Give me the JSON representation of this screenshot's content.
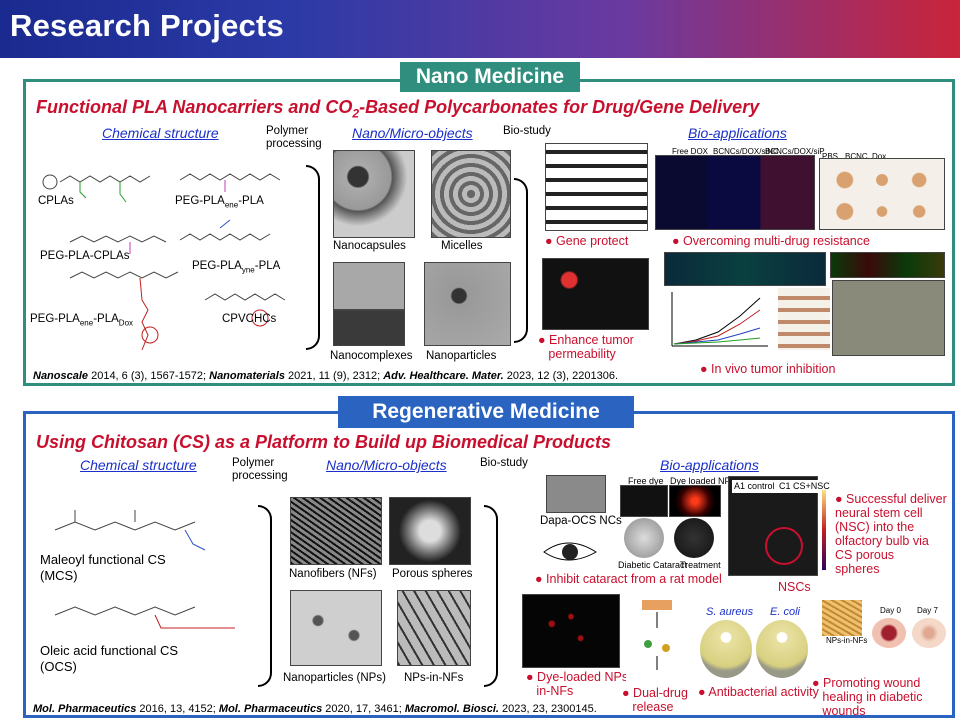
{
  "header": {
    "title": "Research Projects"
  },
  "nano": {
    "tab": "Nano Medicine",
    "title_pre": "Functional PLA Nanocarriers and CO",
    "title_sub": "2",
    "title_post": "-Based Polycarbonates for Drug/Gene Delivery",
    "col_chem": "Chemical structure",
    "col_proc": "Polymer processing",
    "col_objects": "Nano/Micro-objects",
    "col_bio": "Bio-study",
    "col_apps": "Bio-applications",
    "structures": {
      "cplas": "CPLAs",
      "peg_pla_ene": "PEG-PLA",
      "peg_pla_ene_sub": "ene",
      "peg_pla_ene_post": "-PLA",
      "peg_pla_cplas": "PEG-PLA-CPLAs",
      "peg_pla_yne": "PEG-PLA",
      "peg_pla_yne_sub": "yne",
      "peg_pla_yne_post": "-PLA",
      "peg_pla_dox_a": "PEG-PLA",
      "peg_pla_dox_sub1": "ene",
      "peg_pla_dox_b": "-PLA",
      "peg_pla_dox_sub2": "Dox",
      "cpvchcs": "CPVCHCs"
    },
    "objects": [
      "Nanocapsules",
      "Micelles",
      "Nanocomplexes",
      "Nanoparticles"
    ],
    "bullets": {
      "gene": "Gene protect",
      "mdr": "Overcoming multi-drug resistance",
      "tumor_a": "Enhance tumor",
      "tumor_b": "permeability",
      "vivo": "In vivo tumor inhibition"
    },
    "panel_labels": {
      "free_dox": "Free DOX",
      "bcnc_dox": "BCNCs/DOX/siNC",
      "bcnc_dox_p": "BCNCs/DOX/siP",
      "pbs": "PBS",
      "bcnc": "BCNC",
      "dox": "Dox"
    },
    "ref": {
      "j1": "Nanoscale",
      "r1": " 2014, 6 (3), 1567-1572; ",
      "j2": "Nanomaterials",
      "r2": " 2021, 11 (9), 2312; ",
      "j3": "Adv. Healthcare. Mater.",
      "r3": " 2023, 12 (3), 2201306."
    }
  },
  "regen": {
    "tab": "Regenerative Medicine",
    "title": "Using Chitosan (CS) as a Platform to Build up Biomedical Products",
    "col_chem": "Chemical structure",
    "col_proc": "Polymer processing",
    "col_objects": "Nano/Micro-objects",
    "col_bio": "Bio-study",
    "col_apps": "Bio-applications",
    "structures": {
      "mcs_a": "Maleoyl functional CS",
      "mcs_b": "(MCS)",
      "ocs_a": "Oleic acid functional CS",
      "ocs_b": "(OCS)"
    },
    "objects": [
      "Nanofibers (NFs)",
      "Porous spheres",
      "Nanoparticles (NPs)",
      "NPs-in-NFs"
    ],
    "labels": {
      "dapa": "Dapa-OCS NCs",
      "free_dye": "Free dye",
      "dye_nps": "Dye loaded NPs",
      "diabetic": "Diabetic Cataract",
      "treatment": "Treatment",
      "a1": "A1 control",
      "c1": "C1 CS+NSC",
      "nscs": "NSCs",
      "s_aureus": "S. aureus",
      "e_coli": "E. coli",
      "nps_in_nfs": "NPs-in-NFs",
      "day0": "Day 0",
      "day7": "Day 7"
    },
    "bullets": {
      "cataract": "Inhibit cataract from a rat model",
      "nsc_a": "Successful deliver",
      "nsc_b": "neural stem cell",
      "nsc_c": "(NSC) into the",
      "nsc_d": "olfactory bulb via",
      "nsc_e": "CS porous",
      "nsc_f": "spheres",
      "dye_a": "Dye-loaded NPs-",
      "dye_b": "in-NFs",
      "dual_a": "Dual-drug",
      "dual_b": "release",
      "anti": "Antibacterial activity",
      "heal_a": "Promoting wound",
      "heal_b": "healing in diabetic",
      "heal_c": "wounds"
    },
    "ref": {
      "j1": "Mol. Pharmaceutics",
      "r1": " 2016, 13, 4152; ",
      "j2": "Mol. Pharmaceutics",
      "r2": " 2020, 17, 3461; ",
      "j3": "Macromol. Biosci.",
      "r3": " 2023, 23, 2300145."
    }
  }
}
